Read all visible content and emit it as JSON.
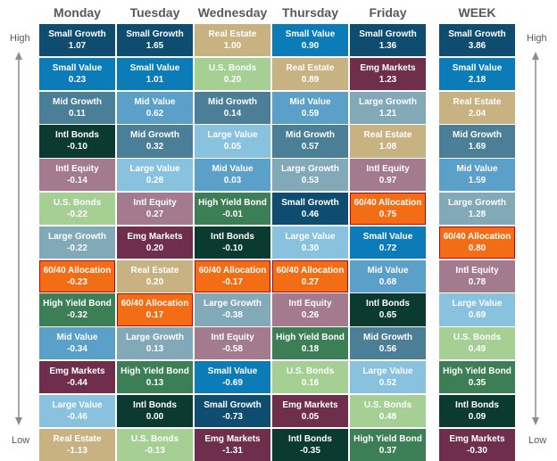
{
  "columns": [
    "Monday",
    "Tuesday",
    "Wednesday",
    "Thursday",
    "Friday",
    "WEEK"
  ],
  "side_labels": {
    "top": "High",
    "bottom": "Low"
  },
  "colors": {
    "Small Growth": "#0e4d6f",
    "Small Value": "#0c7cb8",
    "Mid Growth": "#4a7f97",
    "Mid Value": "#5aa0c8",
    "Large Growth": "#82a9b8",
    "Large Value": "#89c2de",
    "Real Estate": "#c8b282",
    "U.S. Bonds": "#a6cf94",
    "Intl Bonds": "#0b3b30",
    "High Yield Bond": "#3c7e56",
    "Emg Markets": "#6e2e4c",
    "Intl Equity": "#a37a8e",
    "60/40 Allocation": "#f26d14"
  },
  "chart_data": {
    "type": "table",
    "title": "",
    "columns": [
      {
        "name": "Monday",
        "rows": [
          {
            "label": "Small Growth",
            "value": "1.07"
          },
          {
            "label": "Small Value",
            "value": "0.23"
          },
          {
            "label": "Mid Growth",
            "value": "0.11"
          },
          {
            "label": "Intl Bonds",
            "value": "-0.10"
          },
          {
            "label": "Intl Equity",
            "value": "-0.14"
          },
          {
            "label": "U.S. Bonds",
            "value": "-0.22"
          },
          {
            "label": "Large Growth",
            "value": "-0.22"
          },
          {
            "label": "60/40 Allocation",
            "value": "-0.23"
          },
          {
            "label": "High Yield Bond",
            "value": "-0.32"
          },
          {
            "label": "Mid Value",
            "value": "-0.34"
          },
          {
            "label": "Emg Markets",
            "value": "-0.44"
          },
          {
            "label": "Large Value",
            "value": "-0.46"
          },
          {
            "label": "Real Estate",
            "value": "-1.13"
          }
        ]
      },
      {
        "name": "Tuesday",
        "rows": [
          {
            "label": "Small Growth",
            "value": "1.65"
          },
          {
            "label": "Small Value",
            "value": "1.01"
          },
          {
            "label": "Mid Value",
            "value": "0.62"
          },
          {
            "label": "Mid Growth",
            "value": "0.32"
          },
          {
            "label": "Large Value",
            "value": "0.28"
          },
          {
            "label": "Intl Equity",
            "value": "0.27"
          },
          {
            "label": "Emg Markets",
            "value": "0.20"
          },
          {
            "label": "Real Estate",
            "value": "0.20"
          },
          {
            "label": "60/40 Allocation",
            "value": "0.17"
          },
          {
            "label": "Large Growth",
            "value": "0.13"
          },
          {
            "label": "High Yield Bond",
            "value": "0.13"
          },
          {
            "label": "Intl Bonds",
            "value": "0.00"
          },
          {
            "label": "U.S. Bonds",
            "value": "-0.13"
          }
        ]
      },
      {
        "name": "Wednesday",
        "rows": [
          {
            "label": "Real Estate",
            "value": "1.00"
          },
          {
            "label": "U.S. Bonds",
            "value": "0.20"
          },
          {
            "label": "Mid Growth",
            "value": "0.14"
          },
          {
            "label": "Large Value",
            "value": "0.05"
          },
          {
            "label": "Mid Value",
            "value": "0.03"
          },
          {
            "label": "High Yield Bond",
            "value": "-0.01"
          },
          {
            "label": "Intl Bonds",
            "value": "-0.10"
          },
          {
            "label": "60/40 Allocation",
            "value": "-0.17"
          },
          {
            "label": "Large Growth",
            "value": "-0.38"
          },
          {
            "label": "Intl Equity",
            "value": "-0.58"
          },
          {
            "label": "Small Value",
            "value": "-0.69"
          },
          {
            "label": "Small Growth",
            "value": "-0.73"
          },
          {
            "label": "Emg Markets",
            "value": "-1.31"
          }
        ]
      },
      {
        "name": "Thursday",
        "rows": [
          {
            "label": "Small Value",
            "value": "0.90"
          },
          {
            "label": "Real Estate",
            "value": "0.89"
          },
          {
            "label": "Mid Value",
            "value": "0.59"
          },
          {
            "label": "Mid Growth",
            "value": "0.57"
          },
          {
            "label": "Large Growth",
            "value": "0.53"
          },
          {
            "label": "Small Growth",
            "value": "0.46"
          },
          {
            "label": "Large Value",
            "value": "0.30"
          },
          {
            "label": "60/40 Allocation",
            "value": "0.27"
          },
          {
            "label": "Intl Equity",
            "value": "0.26"
          },
          {
            "label": "High Yield Bond",
            "value": "0.18"
          },
          {
            "label": "U.S. Bonds",
            "value": "0.16"
          },
          {
            "label": "Emg Markets",
            "value": "0.05"
          },
          {
            "label": "Intl Bonds",
            "value": "-0.35"
          }
        ]
      },
      {
        "name": "Friday",
        "rows": [
          {
            "label": "Small Growth",
            "value": "1.36"
          },
          {
            "label": "Emg Markets",
            "value": "1.23"
          },
          {
            "label": "Large Growth",
            "value": "1.21"
          },
          {
            "label": "Real Estate",
            "value": "1.08"
          },
          {
            "label": "Intl Equity",
            "value": "0.97"
          },
          {
            "label": "60/40 Allocation",
            "value": "0.75"
          },
          {
            "label": "Small Value",
            "value": "0.72"
          },
          {
            "label": "Mid Value",
            "value": "0.68"
          },
          {
            "label": "Intl Bonds",
            "value": "0.65"
          },
          {
            "label": "Mid Growth",
            "value": "0.56"
          },
          {
            "label": "Large Value",
            "value": "0.52"
          },
          {
            "label": "U.S. Bonds",
            "value": "0.48"
          },
          {
            "label": "High Yield Bond",
            "value": "0.37"
          }
        ]
      },
      {
        "name": "WEEK",
        "rows": [
          {
            "label": "Small Growth",
            "value": "3.86"
          },
          {
            "label": "Small Value",
            "value": "2.18"
          },
          {
            "label": "Real Estate",
            "value": "2.04"
          },
          {
            "label": "Mid Growth",
            "value": "1.69"
          },
          {
            "label": "Mid Value",
            "value": "1.59"
          },
          {
            "label": "Large Growth",
            "value": "1.28"
          },
          {
            "label": "60/40 Allocation",
            "value": "0.80"
          },
          {
            "label": "Intl Equity",
            "value": "0.78"
          },
          {
            "label": "Large Value",
            "value": "0.69"
          },
          {
            "label": "U.S. Bonds",
            "value": "0.49"
          },
          {
            "label": "High Yield Bond",
            "value": "0.35"
          },
          {
            "label": "Intl Bonds",
            "value": "0.09"
          },
          {
            "label": "Emg Markets",
            "value": "-0.30"
          }
        ]
      }
    ]
  }
}
